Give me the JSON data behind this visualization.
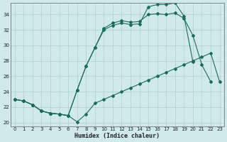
{
  "xlabel": "Humidex (Indice chaleur)",
  "background_color": "#d0eaea",
  "grid_color": "#b0cccc",
  "line_color": "#1a6b5a",
  "xlim": [
    -0.5,
    23.5
  ],
  "ylim": [
    19.5,
    35.5
  ],
  "yticks": [
    20,
    22,
    24,
    26,
    28,
    30,
    32,
    34
  ],
  "xticks": [
    0,
    1,
    2,
    3,
    4,
    5,
    6,
    7,
    8,
    9,
    10,
    11,
    12,
    13,
    14,
    15,
    16,
    17,
    18,
    19,
    20,
    21,
    22,
    23
  ],
  "series1_x": [
    0,
    1,
    2,
    3,
    4,
    5,
    6,
    7,
    8,
    9,
    10,
    11,
    12,
    13,
    14,
    15,
    16,
    17,
    18,
    19,
    20,
    21,
    22,
    23
  ],
  "series1_y": [
    23.0,
    22.8,
    22.3,
    21.5,
    21.2,
    21.1,
    20.9,
    20.1,
    21.1,
    22.5,
    23.0,
    23.5,
    24.0,
    24.5,
    25.0,
    25.5,
    26.0,
    26.5,
    27.0,
    27.5,
    28.0,
    28.5,
    29.0,
    25.3
  ],
  "series2_x": [
    0,
    1,
    2,
    3,
    4,
    5,
    6,
    7,
    8,
    9,
    10,
    11,
    12,
    13,
    14,
    15,
    16,
    17,
    18,
    19,
    20
  ],
  "series2_y": [
    23.0,
    22.8,
    22.3,
    21.5,
    21.2,
    21.1,
    20.9,
    24.2,
    27.3,
    29.7,
    32.0,
    32.6,
    32.9,
    32.7,
    32.8,
    35.0,
    35.3,
    35.3,
    35.5,
    33.8,
    27.9
  ],
  "series3_x": [
    0,
    1,
    2,
    3,
    4,
    5,
    6,
    7,
    8,
    9,
    10,
    11,
    12,
    13,
    14,
    15,
    16,
    17,
    18,
    19,
    20,
    21,
    22,
    23
  ],
  "series3_y": [
    23.0,
    22.8,
    22.3,
    21.5,
    21.2,
    21.1,
    20.9,
    24.2,
    27.3,
    29.7,
    32.2,
    32.9,
    33.2,
    33.0,
    33.1,
    34.0,
    34.1,
    34.0,
    34.2,
    33.5,
    31.3,
    27.5,
    25.3,
    null
  ]
}
